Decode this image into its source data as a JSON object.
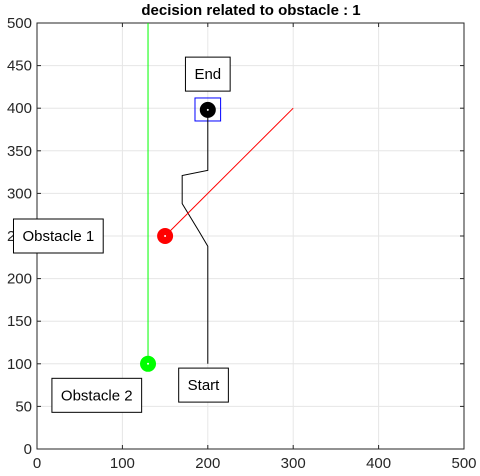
{
  "chart_data": {
    "type": "scatter",
    "title": "decision related to obstacle  : 1",
    "xlabel": "",
    "ylabel": "",
    "xlim": [
      0,
      500
    ],
    "ylim": [
      0,
      500
    ],
    "xticks": [
      0,
      100,
      200,
      300,
      400,
      500
    ],
    "yticks": [
      0,
      50,
      100,
      150,
      200,
      250,
      300,
      350,
      400,
      450,
      500
    ],
    "grid": true,
    "colors": {
      "path": "#000000",
      "red_line": "#ff0000",
      "green_line": "#00ff00",
      "goal_box": "#0000ff",
      "obstacle_1": "#ff0000",
      "obstacle_2": "#00ff00",
      "end_marker": "#000000",
      "grid": "#e6e6e6",
      "axes": "#262626"
    },
    "series": [
      {
        "kind": "line",
        "color": "path",
        "x": [
          200,
          200,
          200,
          190,
          170,
          170,
          200,
          200
        ],
        "y": [
          100,
          200,
          238,
          255,
          288,
          321,
          327,
          398
        ]
      },
      {
        "kind": "line",
        "color": "red_line",
        "x": [
          150,
          300
        ],
        "y": [
          250,
          400
        ]
      },
      {
        "kind": "line",
        "color": "green_line",
        "x": [
          130,
          130
        ],
        "y": [
          100,
          500
        ]
      },
      {
        "kind": "point",
        "color": "obstacle_1",
        "x": [
          150
        ],
        "y": [
          250
        ]
      },
      {
        "kind": "point",
        "color": "obstacle_2",
        "x": [
          130
        ],
        "y": [
          100
        ]
      },
      {
        "kind": "point",
        "color": "end_marker",
        "x": [
          200
        ],
        "y": [
          398
        ]
      }
    ],
    "goal_box": {
      "x": [
        185,
        215
      ],
      "y": [
        385,
        412
      ]
    },
    "annotations": [
      {
        "text": "End",
        "x": 200,
        "y": 440
      },
      {
        "text": "Obstacle 1",
        "x": 25,
        "y": 250
      },
      {
        "text": "Obstacle 2",
        "x": 70,
        "y": 63
      },
      {
        "text": "Start",
        "x": 195,
        "y": 75
      }
    ]
  }
}
